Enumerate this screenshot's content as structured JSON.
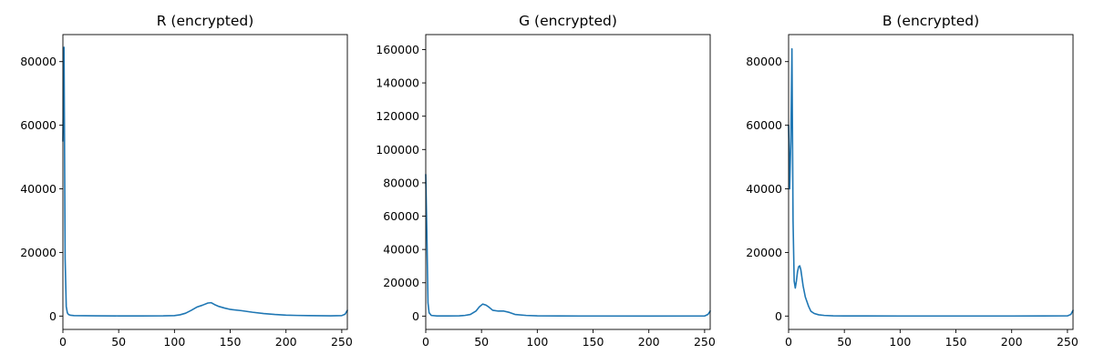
{
  "chart_data": [
    {
      "type": "line",
      "title": "R (encrypted)",
      "xlabel": "",
      "ylabel": "",
      "xlim": [
        0,
        255
      ],
      "ylim": [
        -4200,
        88500
      ],
      "xticks": [
        0,
        50,
        100,
        150,
        200,
        250
      ],
      "yticks": [
        0,
        20000,
        40000,
        60000,
        80000
      ],
      "grid": false,
      "color": "#1f77b4",
      "series": [
        {
          "x": [
            0,
            1,
            2,
            3,
            4,
            5,
            7,
            10,
            20,
            30,
            50,
            70,
            90,
            100,
            105,
            110,
            115,
            120,
            125,
            130,
            133,
            136,
            140,
            145,
            150,
            160,
            170,
            180,
            190,
            200,
            210,
            220,
            230,
            240,
            250,
            253,
            255
          ],
          "y": [
            55000,
            84500,
            18000,
            3000,
            1000,
            500,
            250,
            150,
            100,
            80,
            50,
            50,
            60,
            150,
            400,
            900,
            1800,
            2800,
            3400,
            4100,
            4200,
            3600,
            3000,
            2500,
            2100,
            1700,
            1200,
            800,
            500,
            300,
            200,
            150,
            120,
            80,
            150,
            600,
            1800
          ]
        }
      ]
    },
    {
      "type": "line",
      "title": "G (encrypted)",
      "xlabel": "",
      "ylabel": "",
      "xlim": [
        0,
        255
      ],
      "ylim": [
        -8000,
        169000
      ],
      "xticks": [
        0,
        50,
        100,
        150,
        200,
        250
      ],
      "yticks": [
        0,
        20000,
        40000,
        60000,
        80000,
        100000,
        120000,
        140000,
        160000
      ],
      "grid": false,
      "color": "#1f77b4",
      "series": [
        {
          "x": [
            0,
            1,
            2,
            3,
            5,
            10,
            20,
            30,
            35,
            40,
            45,
            48,
            51,
            54,
            57,
            60,
            65,
            70,
            75,
            80,
            90,
            100,
            120,
            150,
            200,
            250,
            253,
            255
          ],
          "y": [
            85000,
            50000,
            8000,
            2000,
            400,
            100,
            80,
            150,
            400,
            1000,
            3000,
            5500,
            7200,
            6600,
            5200,
            3500,
            3000,
            3000,
            2200,
            1000,
            400,
            150,
            80,
            50,
            40,
            60,
            1000,
            3000
          ]
        }
      ]
    },
    {
      "type": "line",
      "title": "B (encrypted)",
      "xlabel": "",
      "ylabel": "",
      "xlim": [
        0,
        255
      ],
      "ylim": [
        -4200,
        88500
      ],
      "xticks": [
        0,
        50,
        100,
        150,
        200,
        250
      ],
      "yticks": [
        0,
        20000,
        40000,
        60000,
        80000
      ],
      "grid": false,
      "color": "#1f77b4",
      "series": [
        {
          "x": [
            0,
            1,
            2,
            3,
            4,
            5,
            6,
            7,
            8,
            9,
            10,
            11,
            12,
            13,
            15,
            18,
            20,
            23,
            27,
            32,
            40,
            50,
            70,
            100,
            150,
            200,
            250,
            253,
            255
          ],
          "y": [
            60000,
            40000,
            55000,
            84000,
            30000,
            11000,
            8800,
            11000,
            14000,
            15500,
            15800,
            14500,
            12000,
            9500,
            6000,
            3000,
            1500,
            800,
            400,
            200,
            80,
            40,
            30,
            20,
            20,
            20,
            60,
            500,
            1800
          ]
        }
      ]
    }
  ]
}
